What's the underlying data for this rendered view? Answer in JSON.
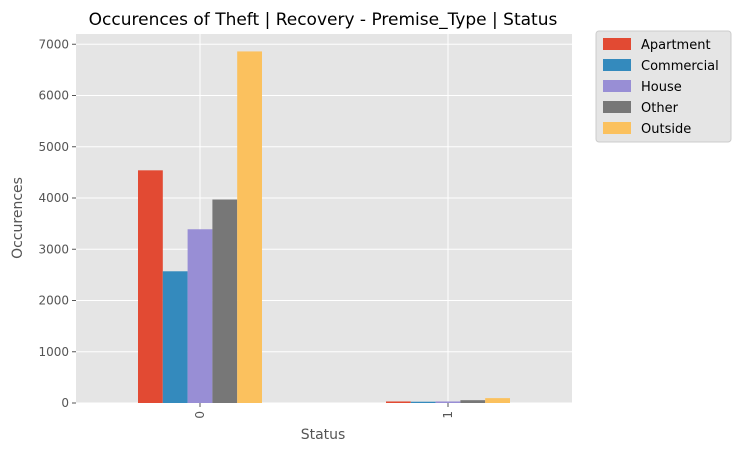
{
  "chart_data": {
    "type": "bar",
    "title": "Occurences of Theft | Recovery - Premise_Type | Status",
    "xlabel": "Status",
    "ylabel": "Occurences",
    "categories": [
      "0",
      "1"
    ],
    "series": [
      {
        "name": "Apartment",
        "color": "#E24A33",
        "values": [
          4540,
          30
        ]
      },
      {
        "name": "Commercial",
        "color": "#348ABD",
        "values": [
          2570,
          25
        ]
      },
      {
        "name": "House",
        "color": "#988ED5",
        "values": [
          3390,
          30
        ]
      },
      {
        "name": "Other",
        "color": "#777777",
        "values": [
          3970,
          55
        ]
      },
      {
        "name": "Outside",
        "color": "#FBC15E",
        "values": [
          6860,
          95
        ]
      }
    ],
    "ylim": [
      0,
      7200
    ],
    "yticks": [
      0,
      1000,
      2000,
      3000,
      4000,
      5000,
      6000,
      7000
    ],
    "grid": true,
    "legend_position": "outside-top-right",
    "plot_background": "#E5E5E5"
  }
}
